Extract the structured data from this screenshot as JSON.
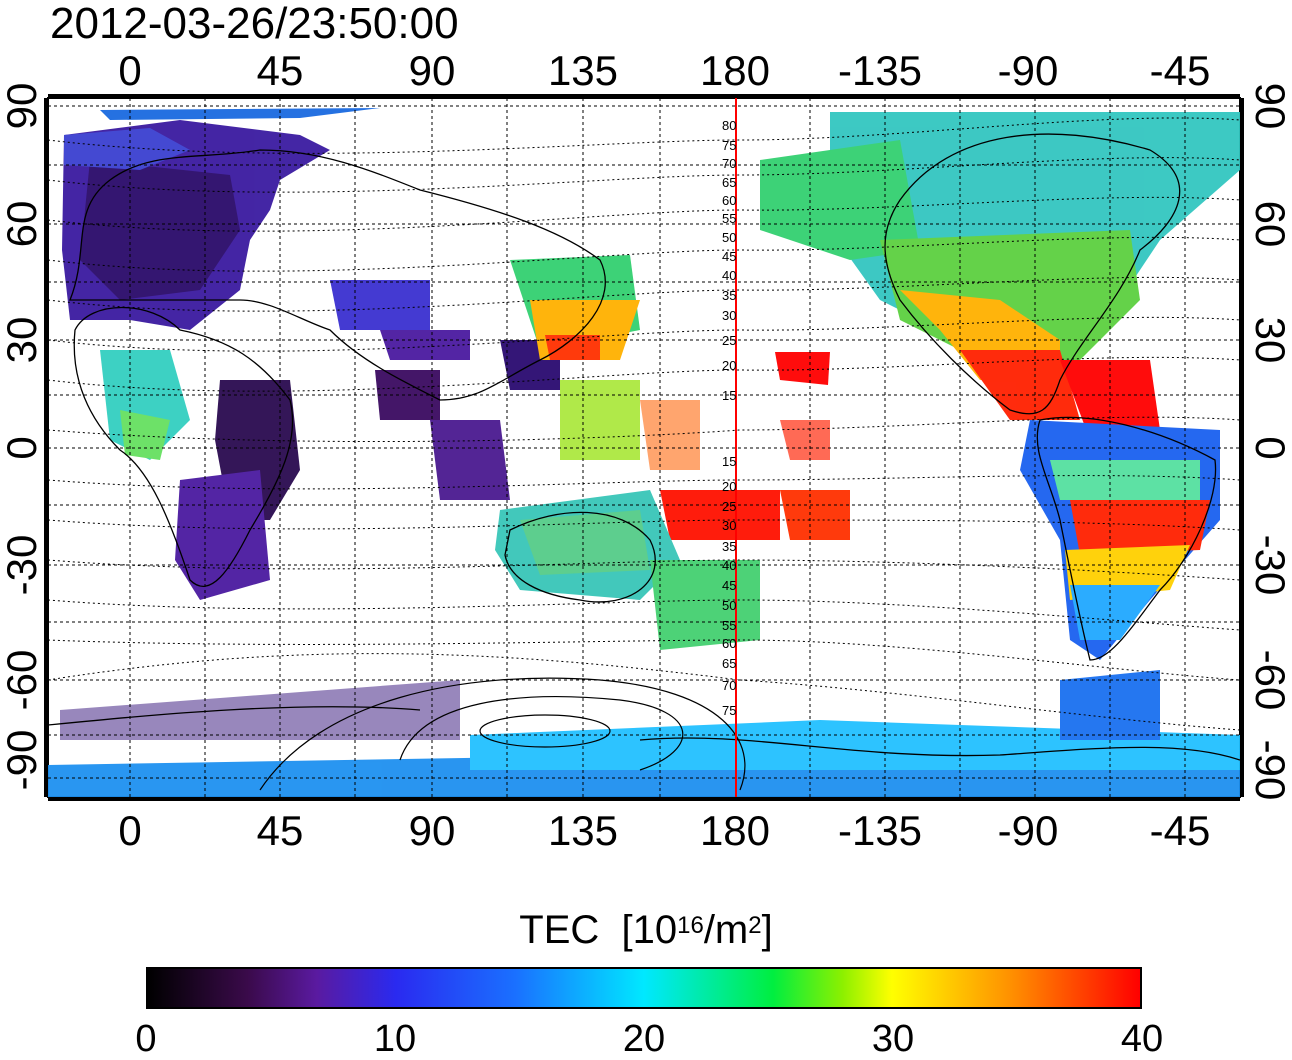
{
  "timestamp": "2012-03-26/23:50:00",
  "map": {
    "lon_ticks": [
      "0",
      "45",
      "90",
      "135",
      "180",
      "-135",
      "-90",
      "-45"
    ],
    "lat_ticks": [
      "90",
      "60",
      "30",
      "0",
      "-30",
      "-60",
      "-90"
    ],
    "magnetic_lat_labels": [
      "80",
      "75",
      "70",
      "65",
      "60",
      "55",
      "50",
      "45",
      "40",
      "35",
      "30",
      "25",
      "20",
      "15",
      "15",
      "20",
      "25",
      "30",
      "35",
      "40",
      "45",
      "50",
      "55",
      "60",
      "65",
      "70",
      "75"
    ],
    "colors": {
      "meridian_line": "#ff0000",
      "grid": "#000000",
      "coastline": "#000000"
    }
  },
  "colorbar": {
    "title": "TEC",
    "unit_base": "[10",
    "unit_exp": "16",
    "unit_mid": "/m",
    "unit_exp2": "2",
    "unit_end": "]",
    "labels": [
      "0",
      "10",
      "20",
      "30",
      "40"
    ],
    "min": 0,
    "max": 40
  }
}
